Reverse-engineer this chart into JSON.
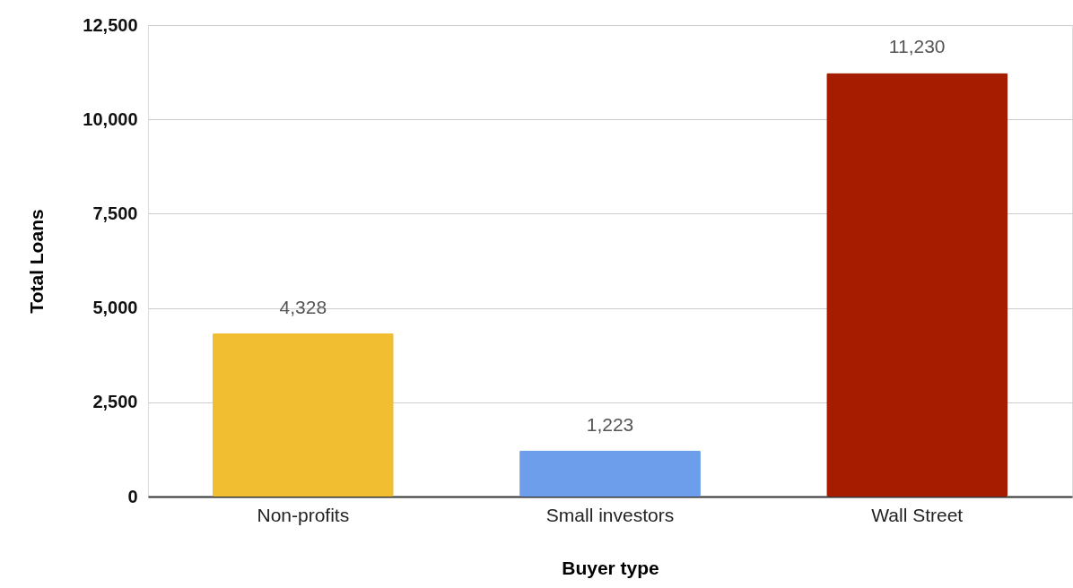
{
  "chart_data": {
    "type": "bar",
    "xlabel": "Buyer type",
    "ylabel": "Total Loans",
    "categories": [
      "Non-profits",
      "Small investors",
      "Wall Street"
    ],
    "values": [
      4328,
      1223,
      11230
    ],
    "colors": [
      "#f1be32",
      "#6d9eeb",
      "#a61c00"
    ],
    "value_labels": [
      "4,328",
      "1,223",
      "11,230"
    ],
    "ylim": [
      0,
      12500
    ],
    "yticks": [
      0,
      {
        "value": 2500,
        "label": "2,500"
      },
      {
        "value": 5000,
        "label": "5,000"
      },
      {
        "value": 7500,
        "label": "7,500"
      },
      {
        "value": 10000,
        "label": "10,000"
      },
      {
        "value": 12500,
        "label": "12,500"
      }
    ],
    "grid": "y",
    "legend": false
  }
}
